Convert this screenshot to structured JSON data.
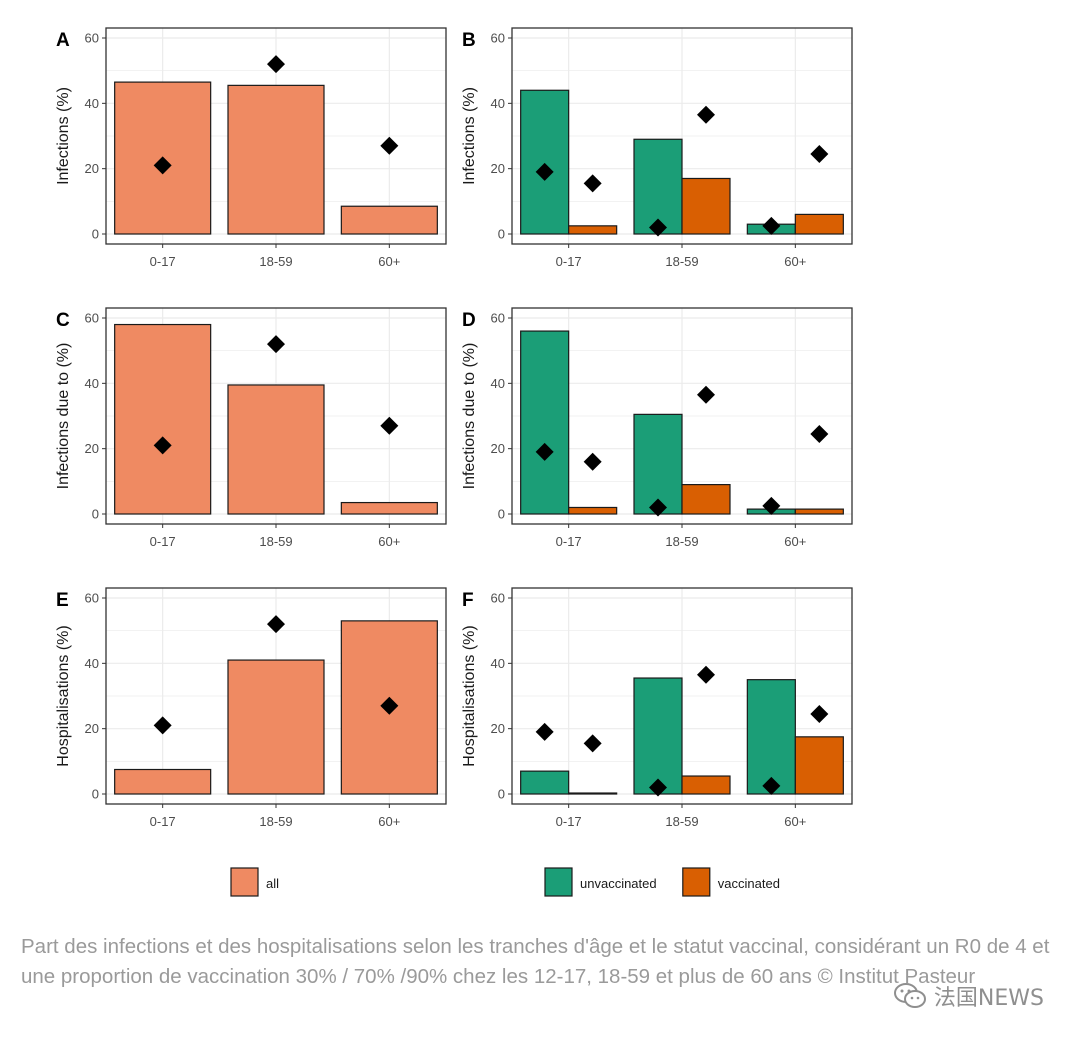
{
  "colors": {
    "all": "#ef8a62",
    "unvaccinated": "#1b9e77",
    "vaccinated": "#d95f02",
    "marker": "#000000",
    "panel_border": "#333333",
    "gridline": "#ebebeb",
    "axis_text": "#4d4d4d"
  },
  "chart_data": [
    {
      "id": "A",
      "tag": "A",
      "type": "bar",
      "categories": [
        "0-17",
        "18-59",
        "60+"
      ],
      "ylabel": "Infections (%)",
      "ylim": [
        0,
        60
      ],
      "yticks": [
        0,
        20,
        40,
        60
      ],
      "grid": true,
      "series": [
        {
          "name": "all",
          "values": [
            46.5,
            45.5,
            8.5
          ]
        }
      ],
      "markers": [
        21,
        52,
        27
      ]
    },
    {
      "id": "B",
      "tag": "B",
      "type": "bar",
      "categories": [
        "0-17",
        "18-59",
        "60+"
      ],
      "ylabel": "Infections (%)",
      "ylim": [
        0,
        60
      ],
      "yticks": [
        0,
        20,
        40,
        60
      ],
      "grid": true,
      "series": [
        {
          "name": "unvaccinated",
          "values": [
            44,
            29,
            3
          ]
        },
        {
          "name": "vaccinated",
          "values": [
            2.5,
            17,
            6
          ]
        }
      ],
      "markers": [
        19,
        15.5,
        2,
        36.5,
        2.5,
        24.5
      ]
    },
    {
      "id": "C",
      "tag": "C",
      "type": "bar",
      "categories": [
        "0-17",
        "18-59",
        "60+"
      ],
      "ylabel": "Infections due to (%)",
      "ylim": [
        0,
        60
      ],
      "yticks": [
        0,
        20,
        40,
        60
      ],
      "grid": true,
      "series": [
        {
          "name": "all",
          "values": [
            58,
            39.5,
            3.5
          ]
        }
      ],
      "markers": [
        21,
        52,
        27
      ]
    },
    {
      "id": "D",
      "tag": "D",
      "type": "bar",
      "categories": [
        "0-17",
        "18-59",
        "60+"
      ],
      "ylabel": "Infections due to (%)",
      "ylim": [
        0,
        60
      ],
      "yticks": [
        0,
        20,
        40,
        60
      ],
      "grid": true,
      "series": [
        {
          "name": "unvaccinated",
          "values": [
            56,
            30.5,
            1.5
          ]
        },
        {
          "name": "vaccinated",
          "values": [
            2,
            9,
            1.5
          ]
        }
      ],
      "markers": [
        19,
        16,
        2,
        36.5,
        2.5,
        24.5
      ]
    },
    {
      "id": "E",
      "tag": "E",
      "type": "bar",
      "categories": [
        "0-17",
        "18-59",
        "60+"
      ],
      "ylabel": "Hospitalisations (%)",
      "ylim": [
        0,
        60
      ],
      "yticks": [
        0,
        20,
        40,
        60
      ],
      "grid": true,
      "series": [
        {
          "name": "all",
          "values": [
            7.5,
            41,
            53
          ]
        }
      ],
      "markers": [
        21,
        52,
        27
      ]
    },
    {
      "id": "F",
      "tag": "F",
      "type": "bar",
      "categories": [
        "0-17",
        "18-59",
        "60+"
      ],
      "ylabel": "Hospitalisations (%)",
      "ylim": [
        0,
        60
      ],
      "yticks": [
        0,
        20,
        40,
        60
      ],
      "grid": true,
      "series": [
        {
          "name": "unvaccinated",
          "values": [
            7,
            35.5,
            35
          ]
        },
        {
          "name": "vaccinated",
          "values": [
            0.3,
            5.5,
            17.5
          ]
        }
      ],
      "markers": [
        19,
        15.5,
        2,
        36.5,
        2.5,
        24.5
      ]
    }
  ],
  "legends": {
    "left": [
      {
        "key": "all",
        "label": "all"
      }
    ],
    "right": [
      {
        "key": "unvaccinated",
        "label": "unvaccinated"
      },
      {
        "key": "vaccinated",
        "label": "vaccinated"
      }
    ]
  },
  "caption": "Part des infections et des hospitalisations selon les tranches d'âge et le statut vaccinal, considérant un R0 de 4 et une proportion de vaccination 30% / 70% /90% chez les 12-17, 18-59 et plus de 60 ans © Institut Pasteur",
  "watermark": {
    "icon": "wechat-icon",
    "text": "法国NEWS"
  }
}
